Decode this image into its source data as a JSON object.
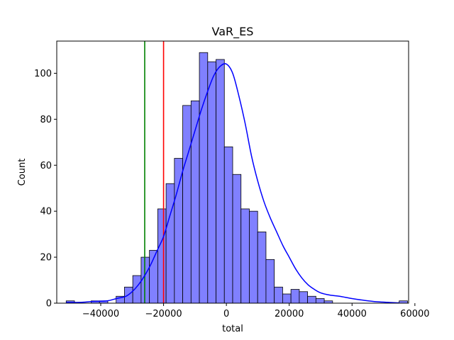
{
  "chart_data": {
    "type": "bar",
    "title": "VaR_ES",
    "xlabel": "total",
    "ylabel": "Count",
    "xlim": [
      -54000,
      58000
    ],
    "ylim": [
      0,
      114
    ],
    "xticks": [
      -40000,
      -20000,
      0,
      20000,
      40000,
      60000
    ],
    "xtick_labels": [
      "−40000",
      "−20000",
      "0",
      "20000",
      "40000",
      "60000"
    ],
    "yticks": [
      0,
      20,
      40,
      60,
      80,
      100
    ],
    "ytick_labels": [
      "0",
      "20",
      "40",
      "60",
      "80",
      "100"
    ],
    "bins": {
      "start": -51000,
      "width": 2650,
      "counts": [
        1,
        0,
        0,
        1,
        1,
        0,
        3,
        7,
        12,
        20,
        23,
        41,
        52,
        63,
        86,
        88,
        109,
        105,
        106,
        68,
        56,
        41,
        40,
        31,
        19,
        7,
        4,
        6,
        5,
        3,
        2,
        1,
        0,
        0,
        0,
        0,
        0,
        0,
        0,
        0,
        1
      ]
    },
    "kde": {
      "x": [
        -51000,
        -46000,
        -42000,
        -38000,
        -35000,
        -32000,
        -30000,
        -28000,
        -26000,
        -24000,
        -22000,
        -20000,
        -18000,
        -16000,
        -14000,
        -12000,
        -10000,
        -8000,
        -6000,
        -4000,
        -2000,
        0,
        2000,
        4000,
        6000,
        8000,
        10000,
        12000,
        14000,
        16000,
        18000,
        20000,
        22000,
        24000,
        26000,
        28000,
        30000,
        33000,
        36000,
        40000,
        44000,
        48000,
        52000,
        55000
      ],
      "y": [
        0.3,
        0.4,
        0.8,
        1.0,
        2.0,
        3.0,
        5.0,
        8.0,
        12.0,
        17.0,
        23.0,
        29.0,
        38.0,
        47.0,
        57.0,
        66.0,
        75.0,
        84.0,
        92.0,
        99.0,
        103.0,
        104.0,
        100.0,
        90.0,
        78.0,
        64.0,
        53.0,
        44.0,
        37.0,
        31.0,
        25.0,
        20.0,
        15.0,
        11.0,
        8.0,
        6.0,
        4.5,
        3.5,
        3.0,
        2.0,
        1.2,
        0.6,
        0.3,
        0.1
      ]
    },
    "vlines": [
      {
        "x": -26000,
        "color": "#008000"
      },
      {
        "x": -20000,
        "color": "#ff0000"
      }
    ],
    "colors": {
      "bar_fill": "#8080ff",
      "bar_edge": "#000000",
      "kde_line": "#0000ff"
    }
  }
}
